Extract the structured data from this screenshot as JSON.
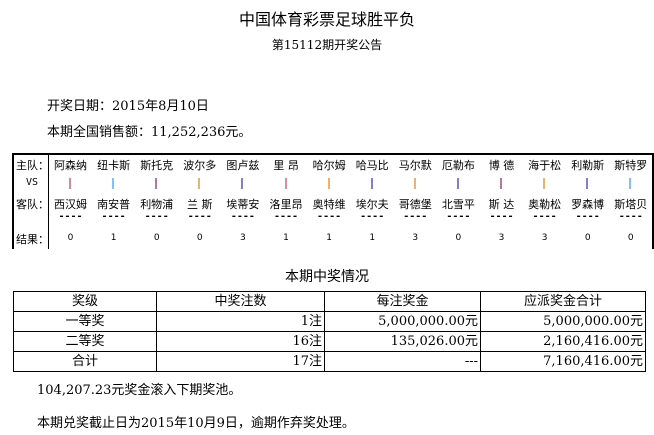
{
  "title": "中国体育彩票足球胜平负",
  "subtitle": "第15112期开奖公告",
  "draw_date": "开奖日期：2015年8月10日",
  "sales": "本期全国销售额：11,252,236元。",
  "labels": {
    "home": "主队：",
    "vs": "VS",
    "away": "客队：",
    "result": "结果："
  },
  "matches": [
    {
      "home": "阿森纳",
      "away": "西汉姆",
      "result": "0",
      "color": "#d08a9a"
    },
    {
      "home": "纽卡斯",
      "away": "南安普",
      "result": "1",
      "color": "#7fc4f0"
    },
    {
      "home": "斯托克",
      "away": "利物浦",
      "result": "0",
      "color": "#b07a9a"
    },
    {
      "home": "波尔多",
      "away": "兰 斯",
      "result": "0",
      "color": "#f0b070"
    },
    {
      "home": "图卢兹",
      "away": "埃蒂安",
      "result": "3",
      "color": "#8a7ad0"
    },
    {
      "home": "里 昂",
      "away": "洛里昂",
      "result": "1",
      "color": "#e08aa0"
    },
    {
      "home": "哈尔姆",
      "away": "奥特维",
      "result": "1",
      "color": "#f0b070"
    },
    {
      "home": "哈马比",
      "away": "埃尔夫",
      "result": "1",
      "color": "#8a7ad0"
    },
    {
      "home": "马尔默",
      "away": "哥德堡",
      "result": "3",
      "color": "#f0b070"
    },
    {
      "home": "厄勒布",
      "away": "北雪平",
      "result": "0",
      "color": "#8a7ad0"
    },
    {
      "home": "博 德",
      "away": "斯 达",
      "result": "3",
      "color": "#b07a9a"
    },
    {
      "home": "海于松",
      "away": "奥勒松",
      "result": "3",
      "color": "#f0b070"
    },
    {
      "home": "利勒斯",
      "away": "罗森博",
      "result": "0",
      "color": "#8a7ad0"
    },
    {
      "home": "斯特罗",
      "away": "斯塔贝",
      "result": "0",
      "color": "#7fc4f0"
    }
  ],
  "dashes": "----",
  "prize_title": "本期中奖情况",
  "prize_table": {
    "headers": [
      "奖级",
      "中奖注数",
      "每注奖金",
      "应派奖金合计"
    ],
    "rows": [
      [
        "一等奖",
        "1注",
        "5,000,000.00元",
        "5,000,000.00元"
      ],
      [
        "二等奖",
        "16注",
        "135,026.00元",
        "2,160,416.00元"
      ],
      [
        "合计",
        "17注",
        "---",
        "7,160,416.00元"
      ]
    ]
  },
  "rollover": "104,207.23元奖金滚入下期奖池。",
  "deadline": "本期兑奖截止日为2015年10月9日，逾期作弃奖处理。"
}
